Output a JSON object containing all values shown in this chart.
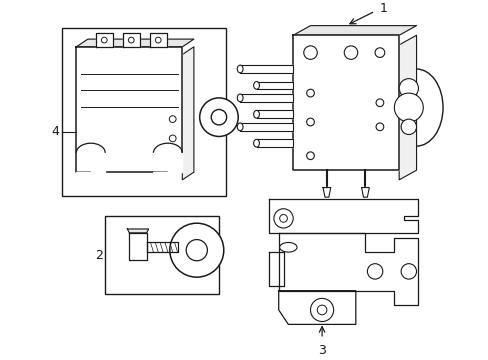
{
  "background_color": "#ffffff",
  "line_color": "#1a1a1a",
  "fig_width": 4.89,
  "fig_height": 3.6,
  "dpi": 100,
  "label_fontsize": 9,
  "comp1_label": "1",
  "comp2_label": "2",
  "comp3_label": "3",
  "comp4_label": "4"
}
